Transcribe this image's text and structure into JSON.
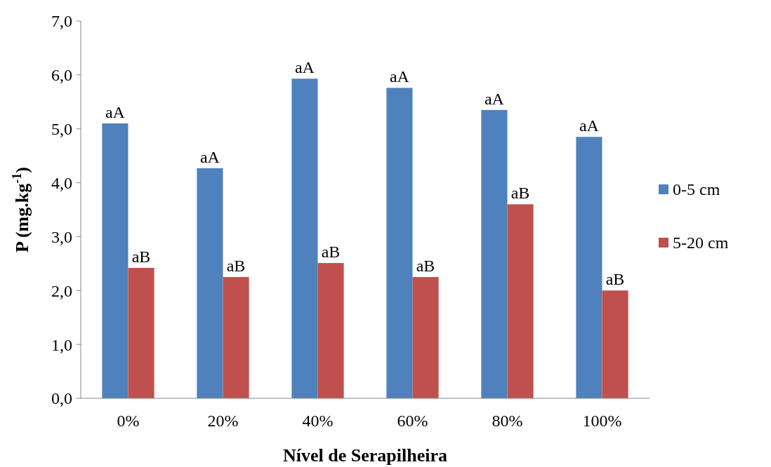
{
  "chart_data": {
    "type": "bar",
    "xlabel": "Nível de Serapilheira",
    "ylabel": "P (mg.kg$^{-1}$)",
    "categories": [
      "0%",
      "20%",
      "40%",
      "60%",
      "80%",
      "100%"
    ],
    "series": [
      {
        "name": "0-5 cm",
        "color": "#4f81bd",
        "values": [
          5.1,
          4.27,
          5.93,
          5.76,
          5.35,
          4.85
        ],
        "value_labels": [
          "aA",
          "aA",
          "aA",
          "aA",
          "aA",
          "aA"
        ]
      },
      {
        "name": "5-20 cm",
        "color": "#c0504d",
        "values": [
          2.42,
          2.25,
          2.51,
          2.25,
          3.6,
          2.0
        ],
        "value_labels": [
          "aB",
          "aB",
          "aB",
          "aB",
          "aB",
          "aB"
        ]
      }
    ],
    "ylim": [
      0,
      7
    ],
    "yticks": [
      {
        "value": 0,
        "label": "0,0"
      },
      {
        "value": 1,
        "label": "1,0"
      },
      {
        "value": 2,
        "label": "2,0"
      },
      {
        "value": 3,
        "label": "3,0"
      },
      {
        "value": 4,
        "label": "4,0"
      },
      {
        "value": 5,
        "label": "5,0"
      },
      {
        "value": 6,
        "label": "6,0"
      },
      {
        "value": 7,
        "label": "7,0"
      }
    ],
    "grid": false,
    "legend": "right"
  }
}
